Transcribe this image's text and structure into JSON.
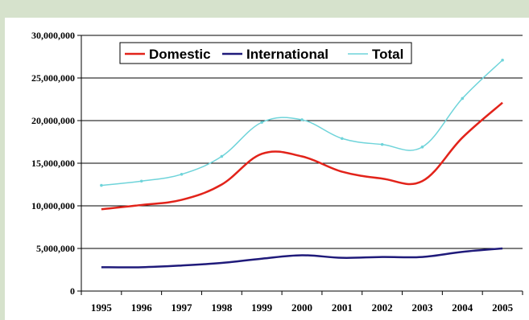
{
  "chart_data": {
    "type": "line",
    "title": "",
    "xlabel": "",
    "ylabel": "",
    "x": [
      "1995",
      "1996",
      "1997",
      "1998",
      "1999",
      "2000",
      "2001",
      "2002",
      "2003",
      "2004",
      "2005"
    ],
    "ylim": [
      0,
      30000000
    ],
    "y_ticks": [
      "0",
      "5,000,000",
      "10,000,000",
      "15,000,000",
      "20,000,000",
      "25,000,000",
      "30,000,000"
    ],
    "y_tick_values": [
      0,
      5000000,
      10000000,
      15000000,
      20000000,
      25000000,
      30000000
    ],
    "grid": "horizontal",
    "legend_position": "top-left",
    "series": [
      {
        "name": "Domestic",
        "color": "#e2231a",
        "markers": false,
        "values": [
          9600000,
          10100000,
          10700000,
          12500000,
          16100000,
          15800000,
          14000000,
          13200000,
          12900000,
          18000000,
          22100000
        ]
      },
      {
        "name": "International",
        "color": "#1f1a7a",
        "markers": false,
        "values": [
          2800000,
          2800000,
          3000000,
          3300000,
          3800000,
          4200000,
          3900000,
          4000000,
          4000000,
          4600000,
          5000000
        ]
      },
      {
        "name": "Total",
        "color": "#6fd4da",
        "markers": true,
        "values": [
          12400000,
          12900000,
          13700000,
          15800000,
          19800000,
          20100000,
          17900000,
          17200000,
          16900000,
          22600000,
          27100000
        ]
      }
    ]
  }
}
